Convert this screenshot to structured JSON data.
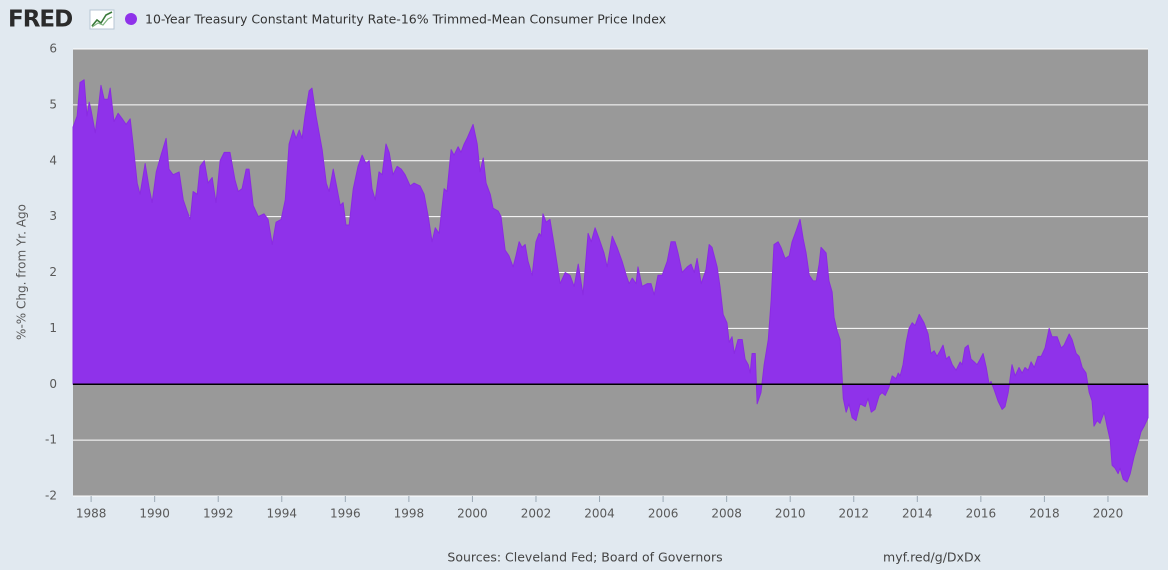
{
  "logo": "FRED",
  "footer": {
    "sources": "Sources: Cleveland Fed; Board of Governors",
    "link": "myf.red/g/DxDx"
  },
  "chart_data": {
    "type": "area",
    "y_label": "%-% Chg. from Yr. Ago",
    "xlim": [
      1987.43,
      2021.26
    ],
    "xticks": [
      1988,
      1990,
      1992,
      1994,
      1996,
      1998,
      2000,
      2002,
      2004,
      2006,
      2008,
      2010,
      2012,
      2014,
      2016,
      2018,
      2020
    ],
    "ylim": [
      -2,
      6
    ],
    "yticks": [
      -2,
      -1,
      0,
      1,
      2,
      3,
      4,
      5,
      6
    ],
    "grid": true,
    "x": [
      1987.43,
      1987.56,
      1987.65,
      1987.78,
      1987.87,
      1987.94,
      1988.0,
      1988.13,
      1988.22,
      1988.31,
      1988.41,
      1988.53,
      1988.6,
      1988.72,
      1988.85,
      1988.98,
      1989.1,
      1989.23,
      1989.32,
      1989.45,
      1989.54,
      1989.7,
      1989.83,
      1989.92,
      1990.05,
      1990.2,
      1990.36,
      1990.45,
      1990.58,
      1990.77,
      1990.9,
      1991.02,
      1991.12,
      1991.21,
      1991.34,
      1991.43,
      1991.56,
      1991.68,
      1991.81,
      1991.93,
      1992.06,
      1992.19,
      1992.37,
      1992.53,
      1992.63,
      1992.75,
      1992.88,
      1992.97,
      1993.1,
      1993.26,
      1993.44,
      1993.57,
      1993.7,
      1993.82,
      1993.98,
      1994.11,
      1994.23,
      1994.36,
      1994.45,
      1994.55,
      1994.64,
      1994.73,
      1994.86,
      1994.95,
      1995.08,
      1995.27,
      1995.4,
      1995.49,
      1995.62,
      1995.74,
      1995.84,
      1995.93,
      1996.02,
      1996.12,
      1996.25,
      1996.4,
      1996.53,
      1996.65,
      1996.75,
      1996.84,
      1996.94,
      1997.06,
      1997.16,
      1997.28,
      1997.38,
      1997.5,
      1997.63,
      1997.76,
      1997.88,
      1998.04,
      1998.16,
      1998.35,
      1998.48,
      1998.61,
      1998.73,
      1998.83,
      1998.95,
      1999.11,
      1999.2,
      1999.33,
      1999.42,
      1999.55,
      1999.64,
      1999.74,
      1999.83,
      2000.02,
      2000.15,
      2000.24,
      2000.34,
      2000.43,
      2000.56,
      2000.65,
      2000.81,
      2000.9,
      2001.03,
      2001.15,
      2001.28,
      2001.37,
      2001.47,
      2001.56,
      2001.66,
      2001.75,
      2001.88,
      2002.0,
      2002.1,
      2002.16,
      2002.22,
      2002.32,
      2002.44,
      2002.57,
      2002.76,
      2002.92,
      2003.07,
      2003.2,
      2003.33,
      2003.48,
      2003.64,
      2003.74,
      2003.86,
      2003.99,
      2004.14,
      2004.24,
      2004.4,
      2004.55,
      2004.71,
      2004.84,
      2004.93,
      2005.03,
      2005.15,
      2005.21,
      2005.34,
      2005.5,
      2005.62,
      2005.72,
      2005.84,
      2005.97,
      2006.13,
      2006.25,
      2006.38,
      2006.47,
      2006.6,
      2006.76,
      2006.88,
      2006.98,
      2007.07,
      2007.2,
      2007.35,
      2007.45,
      2007.54,
      2007.7,
      2007.79,
      2007.89,
      2008.01,
      2008.08,
      2008.17,
      2008.24,
      2008.36,
      2008.49,
      2008.58,
      2008.68,
      2008.74,
      2008.8,
      2008.9,
      2008.96,
      2009.08,
      2009.18,
      2009.31,
      2009.4,
      2009.49,
      2009.62,
      2009.71,
      2009.84,
      2009.97,
      2010.06,
      2010.19,
      2010.31,
      2010.41,
      2010.5,
      2010.6,
      2010.72,
      2010.82,
      2010.91,
      2010.97,
      2011.13,
      2011.22,
      2011.32,
      2011.38,
      2011.48,
      2011.57,
      2011.67,
      2011.76,
      2011.85,
      2011.95,
      2012.07,
      2012.2,
      2012.36,
      2012.45,
      2012.55,
      2012.67,
      2012.8,
      2012.89,
      2012.99,
      2013.11,
      2013.21,
      2013.33,
      2013.4,
      2013.46,
      2013.55,
      2013.65,
      2013.74,
      2013.84,
      2013.93,
      2014.06,
      2014.21,
      2014.34,
      2014.43,
      2014.53,
      2014.62,
      2014.72,
      2014.81,
      2014.91,
      2015.0,
      2015.1,
      2015.22,
      2015.35,
      2015.41,
      2015.5,
      2015.6,
      2015.69,
      2015.79,
      2015.88,
      2015.98,
      2016.07,
      2016.17,
      2016.26,
      2016.32,
      2016.42,
      2016.54,
      2016.67,
      2016.76,
      2016.86,
      2016.98,
      2017.08,
      2017.2,
      2017.3,
      2017.39,
      2017.49,
      2017.58,
      2017.68,
      2017.8,
      2017.9,
      2018.02,
      2018.15,
      2018.24,
      2018.4,
      2018.53,
      2018.62,
      2018.78,
      2018.87,
      2019.0,
      2019.09,
      2019.19,
      2019.31,
      2019.41,
      2019.5,
      2019.56,
      2019.66,
      2019.75,
      2019.88,
      2019.97,
      2020.07,
      2020.13,
      2020.22,
      2020.32,
      2020.38,
      2020.48,
      2020.6,
      2020.7,
      2020.82,
      2020.95,
      2021.04,
      2021.14,
      2021.26
    ],
    "series": [
      {
        "name": "10-Year Treasury Constant Maturity Rate-16% Trimmed-Mean Consumer Price Index",
        "color": "#8f32ea",
        "values": [
          4.6,
          4.8,
          5.4,
          5.45,
          4.8,
          5.05,
          4.9,
          4.5,
          4.9,
          5.35,
          5.1,
          5.1,
          5.3,
          4.7,
          4.85,
          4.75,
          4.65,
          4.75,
          4.3,
          3.6,
          3.4,
          3.95,
          3.5,
          3.25,
          3.8,
          4.1,
          4.4,
          3.85,
          3.75,
          3.8,
          3.3,
          3.1,
          2.95,
          3.45,
          3.4,
          3.9,
          4.0,
          3.6,
          3.7,
          3.25,
          4.0,
          4.15,
          4.15,
          3.65,
          3.45,
          3.5,
          3.85,
          3.85,
          3.2,
          3.0,
          3.05,
          2.95,
          2.5,
          2.9,
          2.95,
          3.3,
          4.3,
          4.55,
          4.4,
          4.55,
          4.4,
          4.8,
          5.25,
          5.3,
          4.8,
          4.2,
          3.6,
          3.45,
          3.85,
          3.5,
          3.2,
          3.25,
          2.85,
          2.85,
          3.5,
          3.9,
          4.1,
          3.95,
          4.0,
          3.5,
          3.3,
          3.8,
          3.75,
          4.3,
          4.15,
          3.75,
          3.9,
          3.85,
          3.75,
          3.55,
          3.6,
          3.55,
          3.4,
          3.0,
          2.55,
          2.8,
          2.7,
          3.5,
          3.45,
          4.2,
          4.1,
          4.25,
          4.15,
          4.3,
          4.4,
          4.65,
          4.3,
          3.8,
          4.05,
          3.6,
          3.4,
          3.15,
          3.1,
          3.0,
          2.4,
          2.3,
          2.1,
          2.3,
          2.55,
          2.45,
          2.5,
          2.2,
          1.95,
          2.55,
          2.7,
          2.65,
          3.05,
          2.9,
          2.95,
          2.5,
          1.8,
          2.0,
          1.95,
          1.75,
          2.15,
          1.6,
          2.7,
          2.55,
          2.8,
          2.6,
          2.35,
          2.1,
          2.65,
          2.45,
          2.2,
          1.95,
          1.8,
          1.9,
          1.8,
          2.1,
          1.75,
          1.8,
          1.8,
          1.6,
          1.95,
          1.95,
          2.2,
          2.55,
          2.55,
          2.35,
          2.0,
          2.1,
          2.15,
          2.0,
          2.25,
          1.8,
          2.05,
          2.5,
          2.45,
          2.1,
          1.75,
          1.25,
          1.1,
          0.75,
          0.85,
          0.55,
          0.8,
          0.8,
          0.45,
          0.35,
          0.2,
          0.55,
          0.55,
          -0.35,
          -0.15,
          0.35,
          0.8,
          1.5,
          2.5,
          2.55,
          2.45,
          2.25,
          2.3,
          2.55,
          2.75,
          2.95,
          2.6,
          2.35,
          1.95,
          1.85,
          1.85,
          2.15,
          2.45,
          2.35,
          1.85,
          1.65,
          1.2,
          0.95,
          0.8,
          -0.25,
          -0.5,
          -0.35,
          -0.6,
          -0.65,
          -0.35,
          -0.4,
          -0.25,
          -0.5,
          -0.45,
          -0.2,
          -0.15,
          -0.2,
          -0.05,
          0.15,
          0.1,
          0.2,
          0.15,
          0.35,
          0.75,
          1.0,
          1.1,
          1.05,
          1.25,
          1.1,
          0.9,
          0.55,
          0.6,
          0.5,
          0.6,
          0.7,
          0.45,
          0.5,
          0.35,
          0.25,
          0.4,
          0.35,
          0.65,
          0.7,
          0.45,
          0.4,
          0.35,
          0.45,
          0.55,
          0.3,
          0.0,
          0.05,
          -0.1,
          -0.3,
          -0.45,
          -0.4,
          -0.15,
          0.35,
          0.15,
          0.3,
          0.2,
          0.3,
          0.25,
          0.4,
          0.3,
          0.5,
          0.5,
          0.65,
          1.0,
          0.85,
          0.85,
          0.65,
          0.7,
          0.9,
          0.8,
          0.55,
          0.5,
          0.3,
          0.2,
          -0.15,
          -0.3,
          -0.75,
          -0.65,
          -0.7,
          -0.5,
          -0.75,
          -1.0,
          -1.45,
          -1.5,
          -1.6,
          -1.5,
          -1.7,
          -1.75,
          -1.6,
          -1.3,
          -1.05,
          -0.85,
          -0.75,
          -0.6
        ]
      }
    ]
  }
}
